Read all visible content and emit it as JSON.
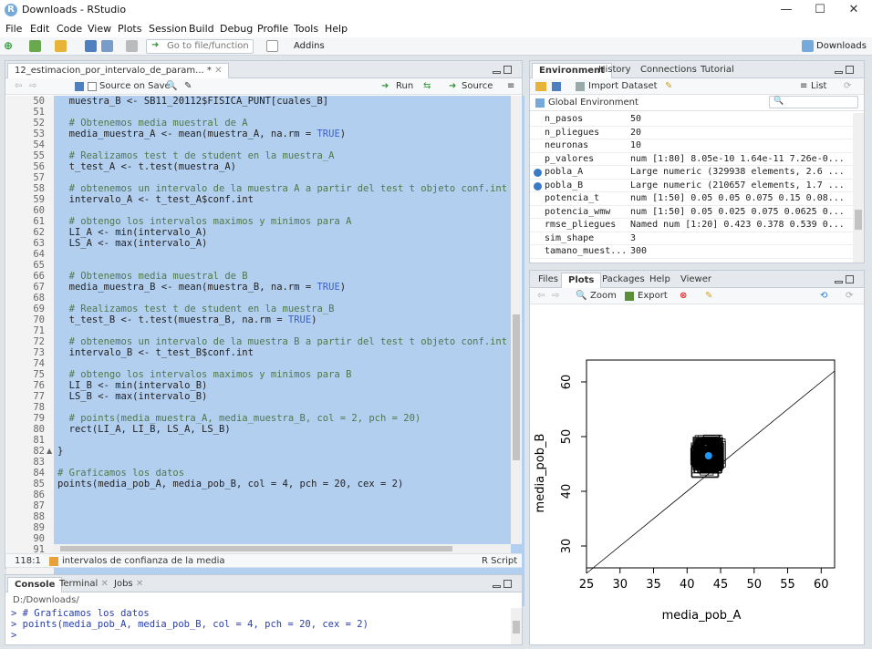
{
  "window": {
    "title": "Downloads - RStudio",
    "minimize": "—",
    "maximize": "☐",
    "close": "✕"
  },
  "menu": [
    "File",
    "Edit",
    "Code",
    "View",
    "Plots",
    "Session",
    "Build",
    "Debug",
    "Profile",
    "Tools",
    "Help"
  ],
  "toolbar": {
    "goto_placeholder": "Go to file/function",
    "addins_label": "Addins",
    "project_label": "Downloads"
  },
  "editor": {
    "tab_label": "12_estimacion_por_intervalo_de_param...",
    "tab_modified": "*",
    "source_on_save_label": "Source on Save",
    "run_label": "Run",
    "source_label": "Source",
    "status_position": "118:1",
    "status_function": "intervalos de confianza de la media",
    "status_filetype": "R Script",
    "lines": [
      {
        "n": "50",
        "t": "  muestra_B <- SB11_20112$FISICA_PUNT[cuales_B]",
        "c": "code"
      },
      {
        "n": "51",
        "t": "",
        "c": "code"
      },
      {
        "n": "52",
        "t": "  # Obtenemos media muestral de A",
        "c": "comment"
      },
      {
        "n": "53",
        "t": "  media_muestra_A <- mean(muestra_A, na.rm = TRUE)",
        "c": "code"
      },
      {
        "n": "54",
        "t": "",
        "c": "code"
      },
      {
        "n": "55",
        "t": "  # Realizamos test t de student en la muestra_A",
        "c": "comment"
      },
      {
        "n": "56",
        "t": "  t_test_A <- t.test(muestra_A)",
        "c": "code"
      },
      {
        "n": "57",
        "t": "",
        "c": "code"
      },
      {
        "n": "58",
        "t": "  # obtenemos un intervalo de la muestra A a partir del test t objeto conf.int",
        "c": "comment"
      },
      {
        "n": "59",
        "t": "  intervalo_A <- t_test_A$conf.int",
        "c": "code"
      },
      {
        "n": "60",
        "t": "",
        "c": "code"
      },
      {
        "n": "61",
        "t": "  # obtengo los intervalos maximos y minimos para A",
        "c": "comment"
      },
      {
        "n": "62",
        "t": "  LI_A <- min(intervalo_A)",
        "c": "code"
      },
      {
        "n": "63",
        "t": "  LS_A <- max(intervalo_A)",
        "c": "code"
      },
      {
        "n": "64",
        "t": "",
        "c": "code"
      },
      {
        "n": "65",
        "t": "",
        "c": "code"
      },
      {
        "n": "66",
        "t": "  # Obtenemos media muestral de B",
        "c": "comment"
      },
      {
        "n": "67",
        "t": "  media_muestra_B <- mean(muestra_B, na.rm = TRUE)",
        "c": "code"
      },
      {
        "n": "68",
        "t": "",
        "c": "code"
      },
      {
        "n": "69",
        "t": "  # Realizamos test t de student en la muestra_B",
        "c": "comment"
      },
      {
        "n": "70",
        "t": "  t_test_B <- t.test(muestra_B, na.rm = TRUE)",
        "c": "code"
      },
      {
        "n": "71",
        "t": "",
        "c": "code"
      },
      {
        "n": "72",
        "t": "  # obtenemos un intervalo de la muestra B a partir del test t objeto conf.int",
        "c": "comment"
      },
      {
        "n": "73",
        "t": "  intervalo_B <- t_test_B$conf.int",
        "c": "code"
      },
      {
        "n": "74",
        "t": "",
        "c": "code"
      },
      {
        "n": "75",
        "t": "  # obtengo los intervalos maximos y minimos para B",
        "c": "comment"
      },
      {
        "n": "76",
        "t": "  LI_B <- min(intervalo_B)",
        "c": "code"
      },
      {
        "n": "77",
        "t": "  LS_B <- max(intervalo_B)",
        "c": "code"
      },
      {
        "n": "78",
        "t": "",
        "c": "code"
      },
      {
        "n": "79",
        "t": "  # points(media_muestra_A, media_muestra_B, col = 2, pch = 20)",
        "c": "comment"
      },
      {
        "n": "80",
        "t": "  rect(LI_A, LI_B, LS_A, LS_B)",
        "c": "code"
      },
      {
        "n": "81",
        "t": "",
        "c": "code"
      },
      {
        "n": "82",
        "t": "}",
        "c": "code"
      },
      {
        "n": "83",
        "t": "",
        "c": "code"
      },
      {
        "n": "84",
        "t": "# Graficamos los datos",
        "c": "comment"
      },
      {
        "n": "85",
        "t": "points(media_pob_A, media_pob_B, col = 4, pch = 20, cex = 2)",
        "c": "code"
      },
      {
        "n": "86",
        "t": "",
        "c": "code"
      },
      {
        "n": "87",
        "t": "",
        "c": "code"
      },
      {
        "n": "88",
        "t": "",
        "c": "code"
      },
      {
        "n": "89",
        "t": "",
        "c": "code"
      },
      {
        "n": "90",
        "t": "",
        "c": "code"
      },
      {
        "n": "91",
        "t": "",
        "c": "code"
      }
    ]
  },
  "environment": {
    "tabs": [
      "Environment",
      "History",
      "Connections",
      "Tutorial"
    ],
    "import_label": "Import Dataset",
    "list_label": "List",
    "scope_label": "Global Environment",
    "rows": [
      {
        "name": "n_pasos",
        "value": "50",
        "icon": false
      },
      {
        "name": "n_pliegues",
        "value": "20",
        "icon": false
      },
      {
        "name": "neuronas",
        "value": "10",
        "icon": false
      },
      {
        "name": "p_valores",
        "value": "num [1:80] 8.05e-10 1.64e-11 7.26e-0...",
        "icon": false
      },
      {
        "name": "pobla_A",
        "value": "Large numeric (329938 elements, 2.6 ...",
        "icon": true
      },
      {
        "name": "pobla_B",
        "value": "Large numeric (210657 elements, 1.7 ...",
        "icon": true
      },
      {
        "name": "potencia_t",
        "value": "num [1:50] 0.05 0.05 0.075 0.15 0.08...",
        "icon": false
      },
      {
        "name": "potencia_wmw",
        "value": "num [1:50] 0.05 0.025 0.075 0.0625 0...",
        "icon": false
      },
      {
        "name": "rmse_pliegues",
        "value": "Named num [1:20] 0.423 0.378 0.539 0...",
        "icon": false
      },
      {
        "name": "sim_shape",
        "value": "3",
        "icon": false
      },
      {
        "name": "tamano_muest...",
        "value": "300",
        "icon": false
      }
    ]
  },
  "plots": {
    "tabs": [
      "Files",
      "Plots",
      "Packages",
      "Help",
      "Viewer"
    ],
    "zoom_label": "Zoom",
    "export_label": "Export",
    "chart_data": {
      "type": "scatter",
      "xlabel": "media_pob_A",
      "ylabel": "media_pob_B",
      "xlim": [
        25,
        62
      ],
      "ylim": [
        26,
        64
      ],
      "xticks": [
        "25",
        "30",
        "35",
        "40",
        "45",
        "50",
        "55",
        "60"
      ],
      "yticks": [
        "30",
        "40",
        "50",
        "60"
      ],
      "reference_line": {
        "type": "identity",
        "from": [
          25,
          25
        ],
        "to": [
          62,
          62
        ]
      },
      "rect_cluster": {
        "x_range": [
          41.0,
          45.5
        ],
        "y_range": [
          43.0,
          50.0
        ],
        "count": 100
      },
      "point": {
        "x": 43.2,
        "y": 46.5,
        "color": "#2196f3",
        "pch": 20,
        "cex": 2
      }
    }
  },
  "console": {
    "tabs": [
      "Console",
      "Terminal",
      "Jobs"
    ],
    "path": "D:/Downloads/",
    "lines": [
      {
        "t": "> # Graficamos los datos",
        "c": "in"
      },
      {
        "t": "> points(media_pob_A, media_pob_B, col = 4, pch = 20, cex = 2)",
        "c": "in"
      },
      {
        "t": "> ",
        "c": "prompt"
      }
    ]
  },
  "colors": {
    "accent": "#75aadb",
    "selection": "#b3cff0",
    "comment": "#4b7a4b",
    "keyword": "#3b5fcf",
    "point": "#2196f3"
  }
}
